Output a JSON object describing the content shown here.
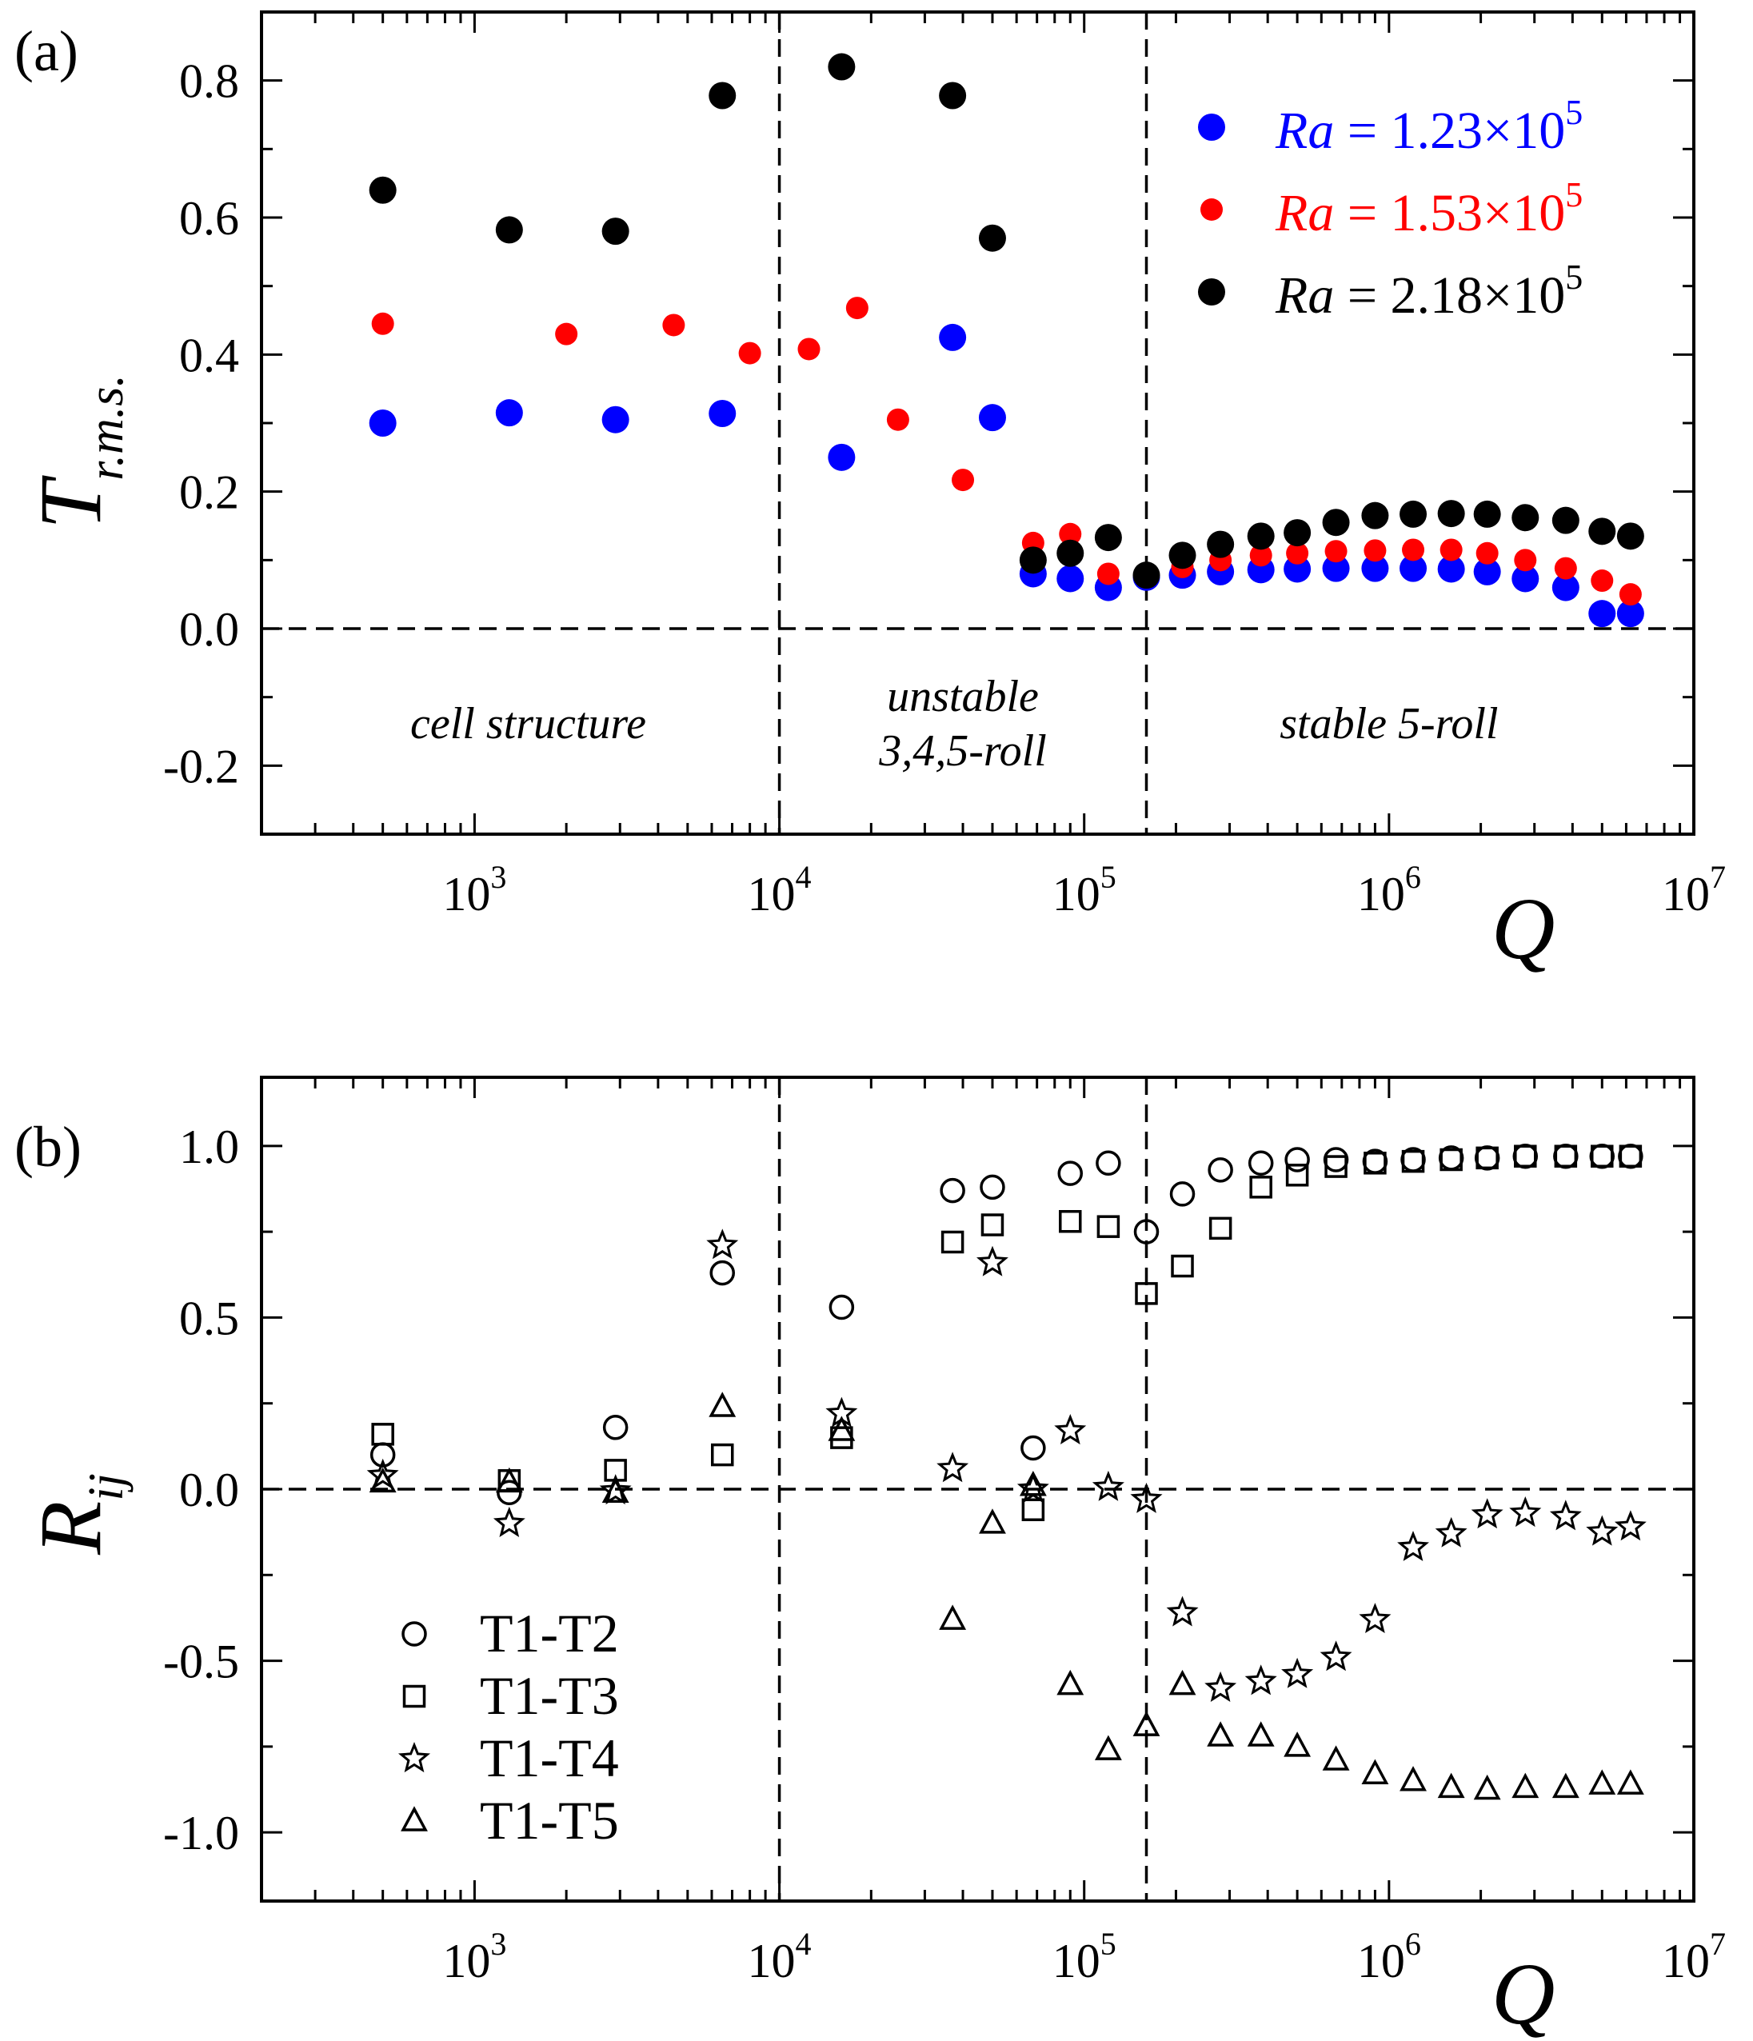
{
  "chart_data": [
    {
      "panel": "(a)",
      "type": "scatter",
      "xscale": "log",
      "xlim": [
        200,
        10000000
      ],
      "ylim": [
        -0.3,
        0.9
      ],
      "xlabel": "Q",
      "ylabel": "T",
      "ylabel_sub": "r.m.s.",
      "xticks": [
        1000,
        10000,
        100000,
        1000000,
        10000000
      ],
      "xtick_labels": [
        {
          "base": "10",
          "exp": "3"
        },
        {
          "base": "10",
          "exp": "4"
        },
        {
          "base": "10",
          "exp": "5"
        },
        {
          "base": "10",
          "exp": "6"
        },
        {
          "base": "10",
          "exp": "7"
        }
      ],
      "yticks": [
        -0.2,
        0.0,
        0.2,
        0.4,
        0.6,
        0.8
      ],
      "ytick_labels": [
        "-0.2",
        "0.0",
        "0.2",
        "0.4",
        "0.6",
        "0.8"
      ],
      "hlines": [
        0.0
      ],
      "vlines": [
        10000,
        160000
      ],
      "regions": [
        {
          "lines": [
            "cell structure"
          ],
          "x": 1500,
          "y": -0.16
        },
        {
          "lines": [
            "unstable",
            "3,4,5-roll"
          ],
          "x": 40000,
          "y": -0.12
        },
        {
          "lines": [
            "stable 5-roll"
          ],
          "x": 1000000,
          "y": -0.16
        }
      ],
      "legend_position": "top-right",
      "series": [
        {
          "name": "Ra = 1.23×10^5",
          "legend": {
            "var": "Ra",
            "eq": " = 1.23×10",
            "exp": "5"
          },
          "color": "#0000ff",
          "radius": 17,
          "points": [
            [
              500,
              0.3
            ],
            [
              1300,
              0.315
            ],
            [
              2900,
              0.305
            ],
            [
              6500,
              0.314
            ],
            [
              16000,
              0.25
            ],
            [
              37000,
              0.425
            ],
            [
              50000,
              0.308
            ],
            [
              68000,
              0.08
            ],
            [
              90000,
              0.073
            ],
            [
              120000,
              0.06
            ],
            [
              160000,
              0.075
            ],
            [
              210000,
              0.078
            ],
            [
              280000,
              0.083
            ],
            [
              380000,
              0.086
            ],
            [
              500000,
              0.087
            ],
            [
              670000,
              0.088
            ],
            [
              900000,
              0.088
            ],
            [
              1200000,
              0.088
            ],
            [
              1600000,
              0.087
            ],
            [
              2100000,
              0.083
            ],
            [
              2800000,
              0.073
            ],
            [
              3800000,
              0.06
            ],
            [
              5000000,
              0.022
            ],
            [
              6200000,
              0.022
            ]
          ]
        },
        {
          "name": "Ra = 1.53×10^5",
          "legend": {
            "var": "Ra",
            "eq": " = 1.53×10",
            "exp": "5"
          },
          "color": "#ff0000",
          "radius": 14,
          "points": [
            [
              500,
              0.445
            ],
            [
              2000,
              0.43
            ],
            [
              4500,
              0.443
            ],
            [
              8000,
              0.402
            ],
            [
              12500,
              0.408
            ],
            [
              18000,
              0.468
            ],
            [
              24500,
              0.305
            ],
            [
              40000,
              0.217
            ],
            [
              68000,
              0.125
            ],
            [
              90000,
              0.138
            ],
            [
              120000,
              0.08
            ],
            [
              210000,
              0.09
            ],
            [
              280000,
              0.1
            ],
            [
              380000,
              0.107
            ],
            [
              500000,
              0.11
            ],
            [
              670000,
              0.113
            ],
            [
              900000,
              0.114
            ],
            [
              1200000,
              0.115
            ],
            [
              1600000,
              0.115
            ],
            [
              2100000,
              0.11
            ],
            [
              2800000,
              0.1
            ],
            [
              3800000,
              0.088
            ],
            [
              5000000,
              0.07
            ],
            [
              6200000,
              0.05
            ]
          ]
        },
        {
          "name": "Ra = 2.18×10^5",
          "legend": {
            "var": "Ra",
            "eq": " = 2.18×10",
            "exp": "5"
          },
          "color": "#000000",
          "radius": 17,
          "points": [
            [
              500,
              0.64
            ],
            [
              1300,
              0.582
            ],
            [
              2900,
              0.58
            ],
            [
              6500,
              0.778
            ],
            [
              16000,
              0.82
            ],
            [
              37000,
              0.778
            ],
            [
              50000,
              0.57
            ],
            [
              68000,
              0.1
            ],
            [
              90000,
              0.11
            ],
            [
              120000,
              0.133
            ],
            [
              160000,
              0.078
            ],
            [
              210000,
              0.107
            ],
            [
              280000,
              0.123
            ],
            [
              380000,
              0.135
            ],
            [
              500000,
              0.14
            ],
            [
              670000,
              0.155
            ],
            [
              900000,
              0.165
            ],
            [
              1200000,
              0.167
            ],
            [
              1600000,
              0.168
            ],
            [
              2100000,
              0.167
            ],
            [
              2800000,
              0.162
            ],
            [
              3800000,
              0.158
            ],
            [
              5000000,
              0.142
            ],
            [
              6200000,
              0.135
            ]
          ]
        }
      ]
    },
    {
      "panel": "(b)",
      "type": "scatter",
      "xscale": "log",
      "xlim": [
        200,
        10000000
      ],
      "ylim": [
        -1.2,
        1.2
      ],
      "xlabel": "Q",
      "ylabel": "R",
      "ylabel_sub": "ij",
      "xticks": [
        1000,
        10000,
        100000,
        1000000,
        10000000
      ],
      "xtick_labels": [
        {
          "base": "10",
          "exp": "3"
        },
        {
          "base": "10",
          "exp": "4"
        },
        {
          "base": "10",
          "exp": "5"
        },
        {
          "base": "10",
          "exp": "6"
        },
        {
          "base": "10",
          "exp": "7"
        }
      ],
      "yticks": [
        -1.0,
        -0.5,
        0.0,
        0.5,
        1.0
      ],
      "ytick_labels": [
        "-1.0",
        "-0.5",
        "0.0",
        "0.5",
        "1.0"
      ],
      "hlines": [
        0.0
      ],
      "vlines": [
        10000,
        160000
      ],
      "legend_position": "bottom-left",
      "series": [
        {
          "name": "T1-T2",
          "marker": "circle",
          "points": [
            [
              500,
              0.1
            ],
            [
              1300,
              -0.01
            ],
            [
              2900,
              0.18
            ],
            [
              6500,
              0.63
            ],
            [
              16000,
              0.53
            ],
            [
              37000,
              0.87
            ],
            [
              50000,
              0.88
            ],
            [
              68000,
              0.12
            ],
            [
              90000,
              0.92
            ],
            [
              120000,
              0.95
            ],
            [
              160000,
              0.75
            ],
            [
              210000,
              0.86
            ],
            [
              280000,
              0.93
            ],
            [
              380000,
              0.95
            ],
            [
              500000,
              0.96
            ],
            [
              670000,
              0.96
            ],
            [
              900000,
              0.955
            ],
            [
              1200000,
              0.96
            ],
            [
              1600000,
              0.965
            ],
            [
              2100000,
              0.965
            ],
            [
              2800000,
              0.97
            ],
            [
              3800000,
              0.97
            ],
            [
              5000000,
              0.97
            ],
            [
              6200000,
              0.97
            ]
          ]
        },
        {
          "name": "T1-T3",
          "marker": "square",
          "points": [
            [
              500,
              0.16
            ],
            [
              1300,
              0.025
            ],
            [
              2900,
              0.055
            ],
            [
              6500,
              0.1
            ],
            [
              16000,
              0.15
            ],
            [
              37000,
              0.72
            ],
            [
              50000,
              0.77
            ],
            [
              68000,
              -0.06
            ],
            [
              90000,
              0.78
            ],
            [
              120000,
              0.765
            ],
            [
              160000,
              0.57
            ],
            [
              210000,
              0.65
            ],
            [
              280000,
              0.76
            ],
            [
              380000,
              0.88
            ],
            [
              500000,
              0.915
            ],
            [
              670000,
              0.94
            ],
            [
              900000,
              0.95
            ],
            [
              1200000,
              0.955
            ],
            [
              1600000,
              0.96
            ],
            [
              2100000,
              0.965
            ],
            [
              2800000,
              0.97
            ],
            [
              3800000,
              0.97
            ],
            [
              5000000,
              0.97
            ],
            [
              6200000,
              0.97
            ]
          ]
        },
        {
          "name": "T1-T4",
          "marker": "star",
          "points": [
            [
              500,
              0.04
            ],
            [
              1300,
              -0.1
            ],
            [
              2900,
              -0.005
            ],
            [
              6500,
              0.71
            ],
            [
              16000,
              0.22
            ],
            [
              37000,
              0.06
            ],
            [
              50000,
              0.66
            ],
            [
              68000,
              0.0
            ],
            [
              90000,
              0.17
            ],
            [
              120000,
              0.005
            ],
            [
              160000,
              -0.03
            ],
            [
              210000,
              -0.36
            ],
            [
              280000,
              -0.58
            ],
            [
              380000,
              -0.56
            ],
            [
              500000,
              -0.54
            ],
            [
              670000,
              -0.49
            ],
            [
              900000,
              -0.38
            ],
            [
              1200000,
              -0.17
            ],
            [
              1600000,
              -0.13
            ],
            [
              2100000,
              -0.075
            ],
            [
              2800000,
              -0.07
            ],
            [
              3800000,
              -0.08
            ],
            [
              5000000,
              -0.125
            ],
            [
              6200000,
              -0.11
            ]
          ]
        },
        {
          "name": "T1-T5",
          "marker": "triangle",
          "points": [
            [
              500,
              0.02
            ],
            [
              1300,
              0.02
            ],
            [
              2900,
              -0.01
            ],
            [
              6500,
              0.24
            ],
            [
              16000,
              0.17
            ],
            [
              37000,
              -0.38
            ],
            [
              50000,
              -0.1
            ],
            [
              68000,
              0.01
            ],
            [
              90000,
              -0.57
            ],
            [
              120000,
              -0.76
            ],
            [
              160000,
              -0.69
            ],
            [
              210000,
              -0.57
            ],
            [
              280000,
              -0.72
            ],
            [
              380000,
              -0.72
            ],
            [
              500000,
              -0.75
            ],
            [
              670000,
              -0.79
            ],
            [
              900000,
              -0.83
            ],
            [
              1200000,
              -0.85
            ],
            [
              1600000,
              -0.87
            ],
            [
              2100000,
              -0.875
            ],
            [
              2800000,
              -0.87
            ],
            [
              3800000,
              -0.87
            ],
            [
              5000000,
              -0.86
            ],
            [
              6200000,
              -0.86
            ]
          ]
        }
      ]
    }
  ]
}
